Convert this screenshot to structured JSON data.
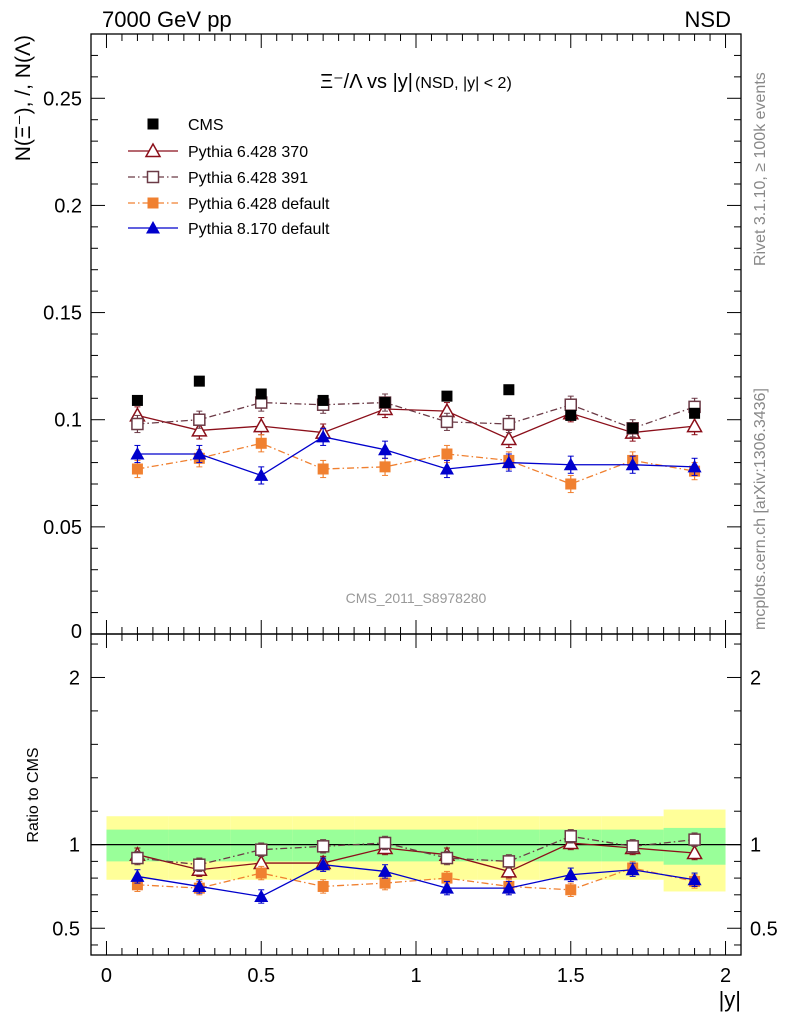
{
  "header": {
    "left": "7000 GeV pp",
    "right": "NSD"
  },
  "side": {
    "rivet": "Rivet 3.1.10, ≥ 100k events",
    "mcplots": "mcplots.cern.ch [arXiv:1306.3436]"
  },
  "chart_data": [
    {
      "type": "scatter",
      "title": "Ξ⁻/Λ vs |y|",
      "title_sub": "(NSD, |y| < 2)",
      "ylabel": "N(Ξ⁻), /, N(Λ)",
      "watermark": "CMS_2011_S8978280",
      "xlim": [
        -0.05,
        2.05
      ],
      "ylim": [
        0,
        0.28
      ],
      "yticks": [
        0,
        0.05,
        0.1,
        0.15,
        0.2,
        0.25
      ],
      "ytick_labels": [
        "0",
        "0.05",
        "0.1",
        "0.15",
        "0.2",
        "0.25"
      ],
      "legend_position": "top-left",
      "x": [
        0.1,
        0.3,
        0.5,
        0.7,
        0.9,
        1.1,
        1.3,
        1.5,
        1.7,
        1.9
      ],
      "series": [
        {
          "name": "CMS",
          "color": "#000000",
          "marker": "square-filled",
          "line": "none",
          "values": [
            0.109,
            0.118,
            0.112,
            0.109,
            0.108,
            0.111,
            0.114,
            0.102,
            0.096,
            0.103
          ],
          "errors": [
            0.002,
            0.002,
            0.002,
            0.002,
            0.002,
            0.002,
            0.002,
            0.002,
            0.002,
            0.002
          ]
        },
        {
          "name": "Pythia 6.428 370",
          "color": "#8b0f1a",
          "marker": "triangle-open",
          "line": "solid",
          "values": [
            0.102,
            0.095,
            0.097,
            0.094,
            0.105,
            0.104,
            0.091,
            0.103,
            0.094,
            0.097
          ],
          "errors": [
            0.004,
            0.004,
            0.004,
            0.004,
            0.004,
            0.004,
            0.004,
            0.004,
            0.004,
            0.004
          ]
        },
        {
          "name": "Pythia 6.428 391",
          "color": "#6b3a46",
          "marker": "square-open",
          "line": "dashdot",
          "values": [
            0.098,
            0.1,
            0.108,
            0.107,
            0.108,
            0.099,
            0.098,
            0.107,
            0.096,
            0.106
          ],
          "errors": [
            0.004,
            0.004,
            0.004,
            0.004,
            0.004,
            0.004,
            0.004,
            0.004,
            0.004,
            0.004
          ]
        },
        {
          "name": "Pythia 6.428 default",
          "color": "#f08030",
          "marker": "square-filled",
          "line": "dashdot",
          "values": [
            0.077,
            0.082,
            0.089,
            0.077,
            0.078,
            0.084,
            0.081,
            0.07,
            0.081,
            0.076
          ],
          "errors": [
            0.004,
            0.004,
            0.004,
            0.004,
            0.004,
            0.004,
            0.004,
            0.004,
            0.004,
            0.004
          ]
        },
        {
          "name": "Pythia 8.170 default",
          "color": "#0000cc",
          "marker": "triangle-filled",
          "line": "solid",
          "values": [
            0.084,
            0.084,
            0.074,
            0.092,
            0.086,
            0.077,
            0.08,
            0.079,
            0.079,
            0.078
          ],
          "errors": [
            0.004,
            0.004,
            0.004,
            0.004,
            0.004,
            0.004,
            0.004,
            0.004,
            0.004,
            0.004
          ]
        }
      ]
    },
    {
      "type": "scatter",
      "ylabel": "Ratio to CMS",
      "xlabel": "|y|",
      "xlim": [
        -0.05,
        2.05
      ],
      "ylim": [
        0.34,
        2.26
      ],
      "xticks": [
        0,
        0.5,
        1,
        1.5,
        2
      ],
      "xtick_labels": [
        "0",
        "0.5",
        "1",
        "1.5",
        "2"
      ],
      "yticks": [
        0.5,
        1,
        2
      ],
      "ytick_labels": [
        "0.5",
        "1",
        "2"
      ],
      "reference_line": 1,
      "bands": {
        "edges": [
          0.0,
          0.2,
          0.4,
          0.6,
          0.8,
          1.0,
          1.2,
          1.4,
          1.6,
          1.8,
          2.0
        ],
        "outer": {
          "color": "#ffff99",
          "lo": [
            0.79,
            0.79,
            0.79,
            0.79,
            0.79,
            0.79,
            0.79,
            0.79,
            0.79,
            0.72
          ],
          "hi": [
            1.17,
            1.17,
            1.17,
            1.17,
            1.17,
            1.17,
            1.17,
            1.17,
            1.17,
            1.21
          ]
        },
        "inner": {
          "color": "#99ff99",
          "lo": [
            0.9,
            0.9,
            0.9,
            0.9,
            0.9,
            0.9,
            0.9,
            0.9,
            0.9,
            0.88
          ],
          "hi": [
            1.09,
            1.09,
            1.09,
            1.09,
            1.09,
            1.09,
            1.09,
            1.09,
            1.09,
            1.1
          ]
        }
      },
      "x": [
        0.1,
        0.3,
        0.5,
        0.7,
        0.9,
        1.1,
        1.3,
        1.5,
        1.7,
        1.9
      ],
      "series": [
        {
          "name": "Pythia 6.428 370",
          "color": "#8b0f1a",
          "marker": "triangle-open",
          "line": "solid",
          "values": [
            0.94,
            0.85,
            0.89,
            0.89,
            0.98,
            0.94,
            0.84,
            1.01,
            0.98,
            0.95
          ],
          "errors": [
            0.04,
            0.04,
            0.04,
            0.04,
            0.04,
            0.04,
            0.04,
            0.04,
            0.04,
            0.04
          ]
        },
        {
          "name": "Pythia 6.428 391",
          "color": "#6b3a46",
          "marker": "square-open",
          "line": "dashdot",
          "values": [
            0.92,
            0.88,
            0.97,
            0.99,
            1.01,
            0.92,
            0.9,
            1.05,
            0.99,
            1.03
          ],
          "errors": [
            0.04,
            0.04,
            0.04,
            0.04,
            0.04,
            0.04,
            0.04,
            0.04,
            0.04,
            0.04
          ]
        },
        {
          "name": "Pythia 6.428 default",
          "color": "#f08030",
          "marker": "square-filled",
          "line": "dashdot",
          "values": [
            0.76,
            0.74,
            0.83,
            0.75,
            0.77,
            0.8,
            0.75,
            0.73,
            0.86,
            0.78
          ],
          "errors": [
            0.04,
            0.04,
            0.04,
            0.04,
            0.04,
            0.04,
            0.04,
            0.04,
            0.04,
            0.04
          ]
        },
        {
          "name": "Pythia 8.170 default",
          "color": "#0000cc",
          "marker": "triangle-filled",
          "line": "solid",
          "values": [
            0.81,
            0.75,
            0.69,
            0.88,
            0.84,
            0.74,
            0.74,
            0.82,
            0.85,
            0.79
          ],
          "errors": [
            0.04,
            0.04,
            0.04,
            0.04,
            0.04,
            0.04,
            0.04,
            0.04,
            0.04,
            0.04
          ]
        }
      ]
    }
  ]
}
